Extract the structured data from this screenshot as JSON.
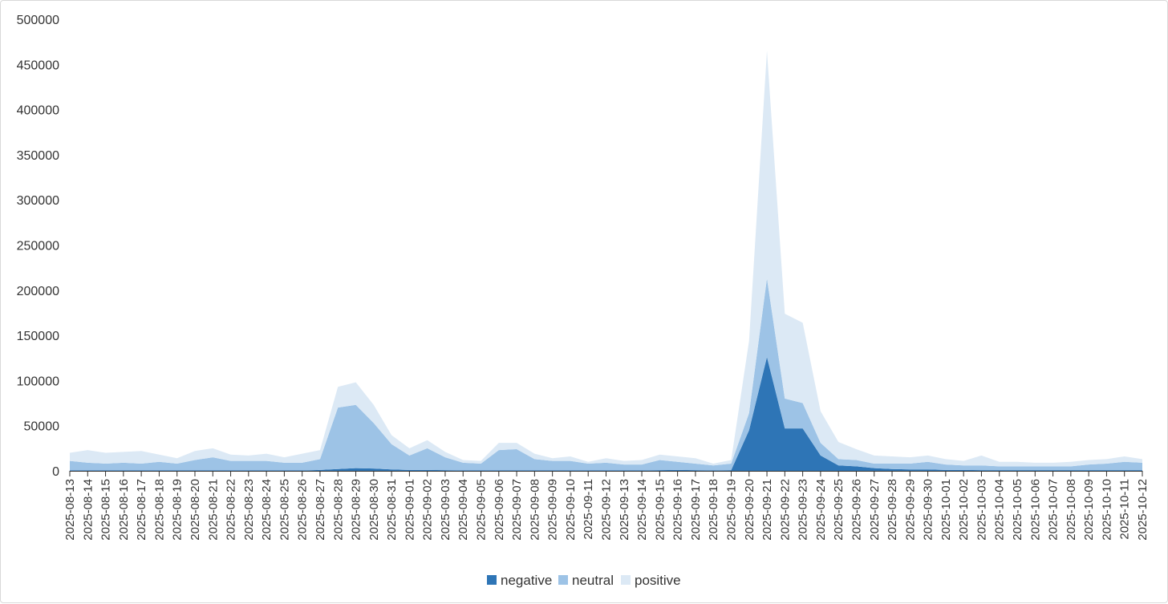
{
  "chart_data": {
    "type": "area",
    "stacked": true,
    "title": "",
    "xlabel": "",
    "ylabel": "",
    "ylim": [
      0,
      500000
    ],
    "yticks": [
      0,
      50000,
      100000,
      150000,
      200000,
      250000,
      300000,
      350000,
      400000,
      450000,
      500000
    ],
    "grid": false,
    "legend_position": "bottom-center",
    "x": [
      "2025-08-13",
      "2025-08-14",
      "2025-08-15",
      "2025-08-16",
      "2025-08-17",
      "2025-08-18",
      "2025-08-19",
      "2025-08-20",
      "2025-08-21",
      "2025-08-22",
      "2025-08-23",
      "2025-08-24",
      "2025-08-25",
      "2025-08-26",
      "2025-08-27",
      "2025-08-28",
      "2025-08-29",
      "2025-08-30",
      "2025-08-31",
      "2025-09-01",
      "2025-09-02",
      "2025-09-03",
      "2025-09-04",
      "2025-09-05",
      "2025-09-06",
      "2025-09-07",
      "2025-09-08",
      "2025-09-09",
      "2025-09-10",
      "2025-09-11",
      "2025-09-12",
      "2025-09-13",
      "2025-09-14",
      "2025-09-15",
      "2025-09-16",
      "2025-09-17",
      "2025-09-18",
      "2025-09-19",
      "2025-09-20",
      "2025-09-21",
      "2025-09-22",
      "2025-09-23",
      "2025-09-24",
      "2025-09-25",
      "2025-09-26",
      "2025-09-27",
      "2025-09-28",
      "2025-09-29",
      "2025-09-30",
      "2025-10-01",
      "2025-10-02",
      "2025-10-03",
      "2025-10-04",
      "2025-10-05",
      "2025-10-06",
      "2025-10-07",
      "2025-10-08",
      "2025-10-09",
      "2025-10-10",
      "2025-10-11",
      "2025-10-12"
    ],
    "series": [
      {
        "name": "negative",
        "color": "#2e75b6",
        "values": [
          500,
          500,
          500,
          500,
          500,
          500,
          500,
          500,
          500,
          500,
          500,
          500,
          500,
          500,
          1000,
          2000,
          3000,
          2500,
          1500,
          1000,
          1000,
          800,
          500,
          500,
          500,
          500,
          500,
          500,
          500,
          500,
          500,
          500,
          500,
          800,
          1000,
          800,
          500,
          800,
          45000,
          126000,
          47000,
          47000,
          17000,
          6000,
          5000,
          3000,
          2000,
          1500,
          1500,
          1000,
          1000,
          800,
          800,
          800,
          800,
          800,
          800,
          800,
          800,
          800,
          800
        ]
      },
      {
        "name": "neutral",
        "color": "#9dc3e6",
        "values": [
          10500,
          8500,
          7500,
          8500,
          7500,
          9500,
          7500,
          11500,
          14500,
          10500,
          10500,
          10500,
          8500,
          8500,
          12000,
          68000,
          70000,
          50500,
          28000,
          16000,
          24000,
          14200,
          8500,
          7500,
          22500,
          23500,
          12500,
          10500,
          10500,
          7500,
          8500,
          6500,
          6500,
          11200,
          9000,
          7200,
          5500,
          7200,
          19000,
          87000,
          33000,
          28000,
          14000,
          7000,
          7000,
          5000,
          6000,
          6500,
          8500,
          6000,
          5000,
          5200,
          4200,
          4200,
          4200,
          4200,
          4200,
          6200,
          7200,
          9200,
          8200
        ]
      },
      {
        "name": "positive",
        "color": "#dce9f5",
        "values": [
          9000,
          14000,
          12000,
          12000,
          14000,
          8000,
          6000,
          10000,
          10000,
          7000,
          6000,
          8000,
          6000,
          10000,
          10000,
          23000,
          25000,
          20000,
          10000,
          8000,
          9000,
          6000,
          3000,
          3000,
          8000,
          7000,
          6000,
          3000,
          5000,
          2000,
          5000,
          4000,
          5000,
          6000,
          6000,
          6000,
          2000,
          4000,
          80000,
          252000,
          94000,
          89000,
          35000,
          19000,
          12000,
          9000,
          8000,
          7000,
          7000,
          6000,
          5000,
          11000,
          5000,
          5000,
          4000,
          4000,
          5000,
          5000,
          5000,
          6000,
          4000
        ]
      }
    ]
  }
}
